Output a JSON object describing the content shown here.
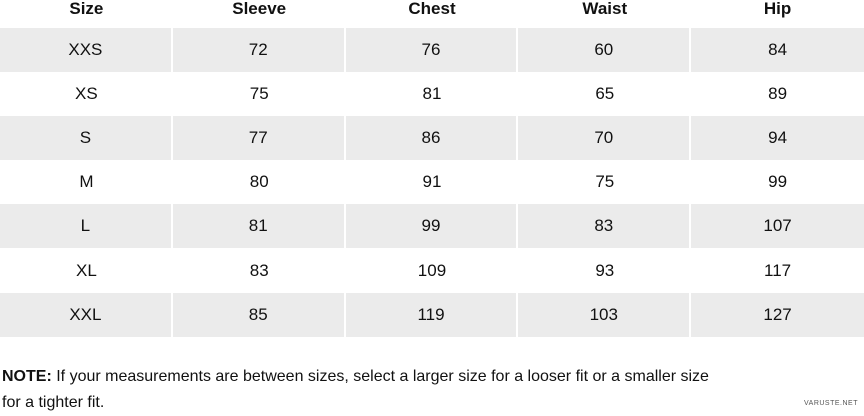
{
  "table": {
    "header": [
      "Size",
      "Sleeve",
      "Chest",
      "Waist",
      "Hip"
    ],
    "rows": [
      [
        "XXS",
        72,
        76,
        60,
        84
      ],
      [
        "XS",
        75,
        81,
        65,
        89
      ],
      [
        "S",
        77,
        86,
        70,
        94
      ],
      [
        "M",
        80,
        91,
        75,
        99
      ],
      [
        "L",
        81,
        99,
        83,
        107
      ],
      [
        "XL",
        83,
        109,
        93,
        117
      ],
      [
        "XXL",
        85,
        119,
        103,
        127
      ]
    ]
  },
  "note": {
    "label": "NOTE:",
    "text": "If your measurements are between sizes, select a larger size for a looser fit or a smaller size for a tighter fit."
  },
  "watermark": "VARUSTE.NET"
}
